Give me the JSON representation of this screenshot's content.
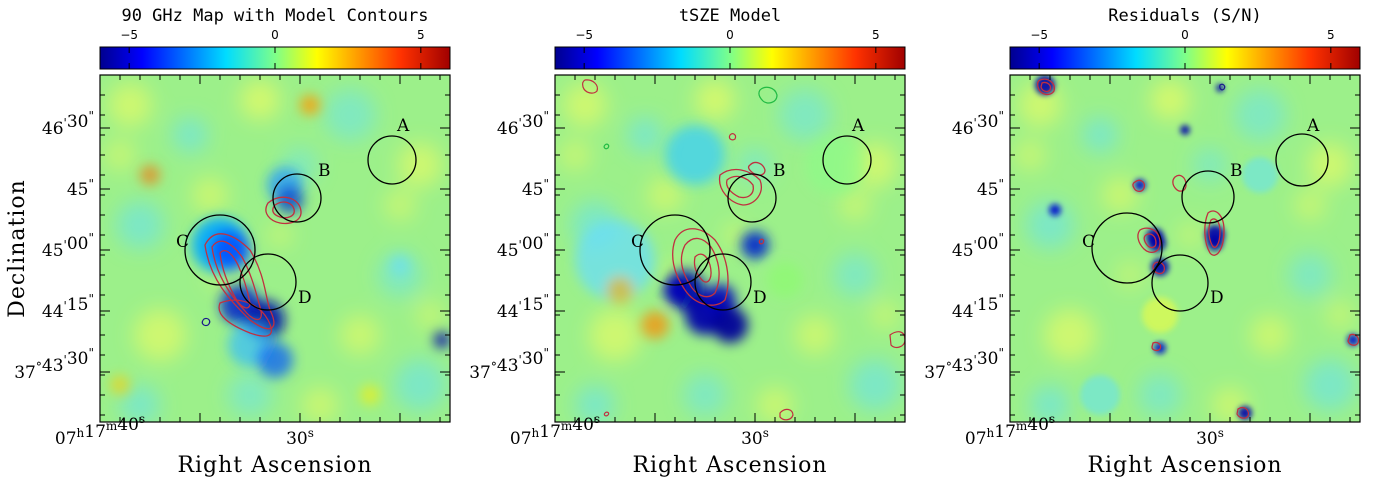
{
  "chart_data": [
    {
      "type": "heatmap",
      "title": "90 GHz Map with Model Contours",
      "xlabel": "Right Ascension",
      "ylabel": "Declination",
      "colorbar": {
        "ticks": [
          "−5",
          "0",
          "5"
        ],
        "range": [
          -6,
          6
        ],
        "colormap": "jet"
      },
      "x_tick_labels": [
        {
          "value": "40s",
          "hms": [
            "07",
            "h",
            "17",
            "m",
            "40",
            "s"
          ]
        },
        {
          "value": "30s",
          "hms": [
            "",
            "",
            "",
            "",
            "30",
            "s"
          ]
        }
      ],
      "y_tick_labels": [
        {
          "value": "46'30\"",
          "parts": [
            "46",
            "'",
            "30",
            "\""
          ]
        },
        {
          "value": "45\"",
          "parts": [
            "",
            "",
            "45",
            "\""
          ]
        },
        {
          "value": "45'00\"",
          "parts": [
            "45",
            "'",
            "00",
            "\""
          ]
        },
        {
          "value": "44'15\"",
          "parts": [
            "44",
            "'",
            "15",
            "\""
          ]
        },
        {
          "value": "37°43'30\"",
          "parts": [
            "37",
            "°",
            "43",
            "'",
            "30",
            "\""
          ]
        }
      ],
      "regions": [
        "A",
        "B",
        "C",
        "D"
      ],
      "contours": "model"
    },
    {
      "type": "heatmap",
      "title": "tSZE Model",
      "xlabel": "Right Ascension",
      "colorbar": {
        "ticks": [
          "−5",
          "0",
          "5"
        ],
        "range": [
          -6,
          6
        ],
        "colormap": "jet"
      },
      "x_tick_labels": [
        {
          "value": "40s",
          "hms": [
            "07",
            "h",
            "17",
            "m",
            "40",
            "s"
          ]
        },
        {
          "value": "30s",
          "hms": [
            "",
            "",
            "",
            "",
            "30",
            "s"
          ]
        }
      ],
      "y_tick_labels": [
        {
          "value": "46'30\"",
          "parts": [
            "46",
            "'",
            "30",
            "\""
          ]
        },
        {
          "value": "45\"",
          "parts": [
            "",
            "",
            "45",
            "\""
          ]
        },
        {
          "value": "45'00\"",
          "parts": [
            "45",
            "'",
            "00",
            "\""
          ]
        },
        {
          "value": "44'15\"",
          "parts": [
            "44",
            "'",
            "15",
            "\""
          ]
        },
        {
          "value": "37°43'30\"",
          "parts": [
            "37",
            "°",
            "43",
            "'",
            "30",
            "\""
          ]
        }
      ],
      "regions": [
        "A",
        "B",
        "C",
        "D"
      ],
      "contours": "data"
    },
    {
      "type": "heatmap",
      "title": "Residuals (S/N)",
      "xlabel": "Right Ascension",
      "colorbar": {
        "ticks": [
          "−5",
          "0",
          "5"
        ],
        "range": [
          -6,
          6
        ],
        "colormap": "jet"
      },
      "x_tick_labels": [
        {
          "value": "40s",
          "hms": [
            "07",
            "h",
            "17",
            "m",
            "40",
            "s"
          ]
        },
        {
          "value": "30s",
          "hms": [
            "",
            "",
            "",
            "",
            "30",
            "s"
          ]
        }
      ],
      "y_tick_labels": [
        {
          "value": "46'30\"",
          "parts": [
            "46",
            "'",
            "30",
            "\""
          ]
        },
        {
          "value": "45\"",
          "parts": [
            "",
            "",
            "45",
            "\""
          ]
        },
        {
          "value": "45'00\"",
          "parts": [
            "45",
            "'",
            "00",
            "\""
          ]
        },
        {
          "value": "44'15\"",
          "parts": [
            "44",
            "'",
            "15",
            "\""
          ]
        },
        {
          "value": "37°43'30\"",
          "parts": [
            "37",
            "°",
            "43",
            "'",
            "30",
            "\""
          ]
        }
      ],
      "regions": [
        "A",
        "B",
        "C",
        "D"
      ],
      "contours": "residual"
    }
  ]
}
